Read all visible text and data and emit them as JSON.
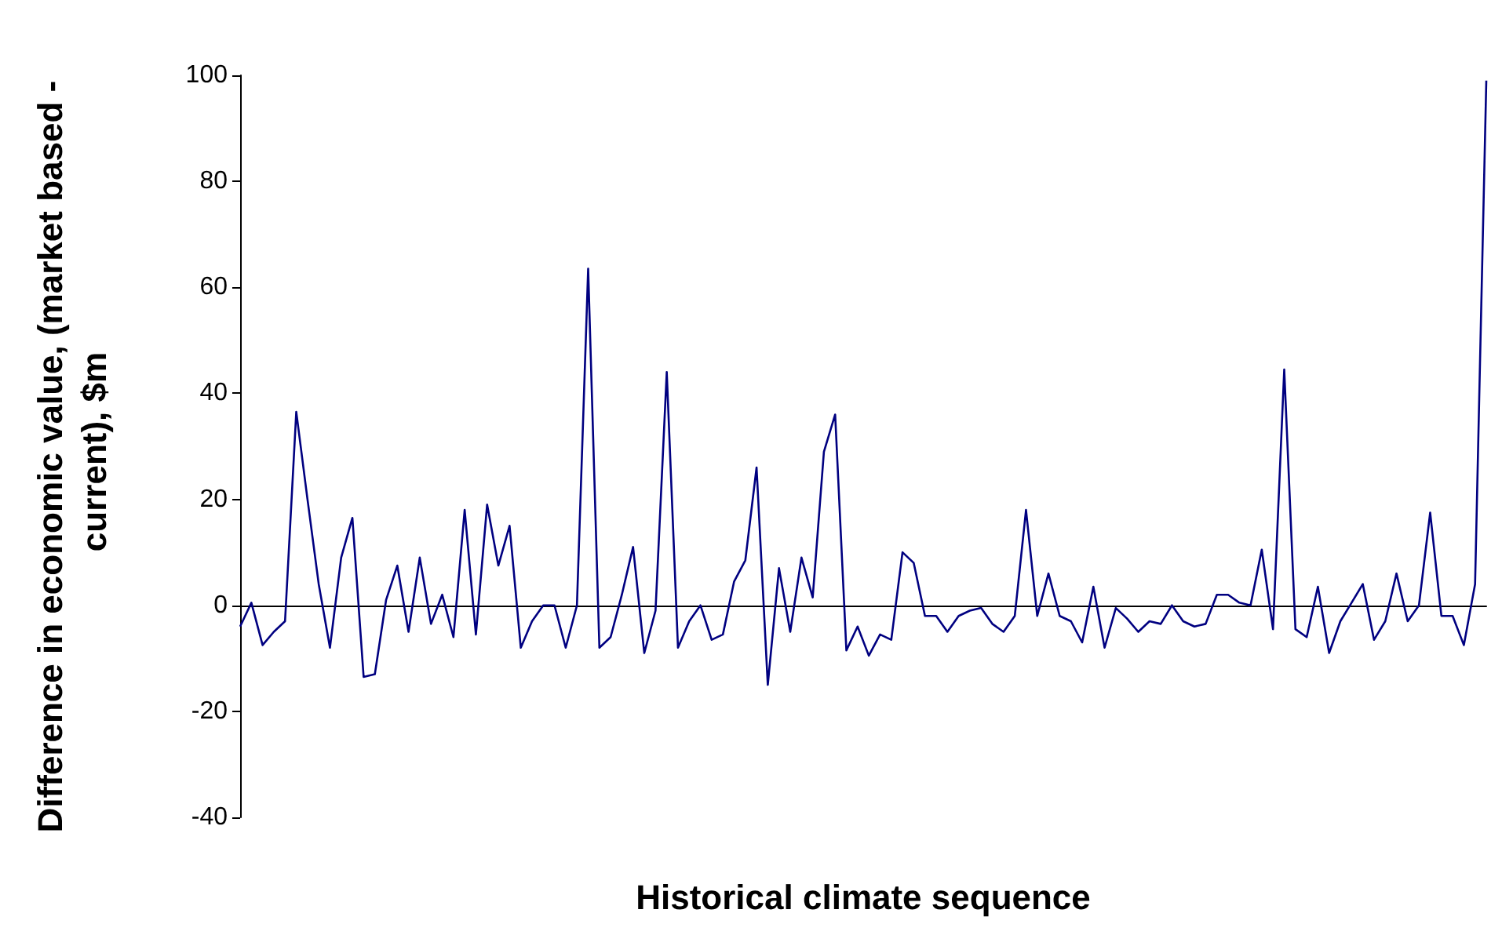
{
  "chart_data": {
    "type": "line",
    "xlabel": "Historical climate sequence",
    "ylabel": "Difference in economic value, (market based - current), $m",
    "categories": [
      null,
      null,
      null,
      null,
      null,
      null,
      null,
      null,
      null,
      null,
      null,
      null,
      null,
      null,
      null,
      null,
      null,
      null,
      null,
      null,
      null,
      null,
      null,
      null,
      null,
      null,
      null,
      null,
      null,
      null,
      null,
      null,
      null,
      null,
      null,
      null,
      null,
      null,
      null,
      null,
      null,
      null,
      null,
      null,
      null,
      null,
      null,
      null,
      null,
      null,
      null,
      null,
      null,
      null,
      null,
      null,
      null,
      null,
      null,
      null,
      null,
      null,
      null,
      null,
      null,
      null,
      null,
      null,
      null,
      null,
      null,
      null,
      null,
      null,
      null,
      null,
      null,
      null,
      null,
      null,
      null,
      null,
      null,
      null,
      null,
      null,
      null,
      null,
      null,
      null,
      null,
      null,
      null,
      null,
      null,
      null,
      null,
      null,
      null,
      null,
      null,
      null,
      null,
      null,
      null,
      null,
      null,
      null,
      null,
      null,
      null,
      null
    ],
    "series": [
      {
        "color": "#000080",
        "values": [
          -4,
          0.5,
          -7.5,
          -5,
          -3,
          36.5,
          20,
          4,
          -8,
          9,
          16.5,
          -13.5,
          -13,
          1,
          7.5,
          -5,
          9,
          -3.5,
          2,
          -6,
          18,
          -5.5,
          19,
          7.5,
          15,
          -8,
          -3,
          0,
          0,
          -8,
          0,
          63.5,
          -8,
          -6,
          2,
          11,
          -9,
          -1,
          44,
          -8,
          -3,
          0,
          -6.5,
          -5.5,
          4.5,
          8.5,
          26,
          -15,
          7,
          -5,
          9,
          1.5,
          29,
          36,
          -8.5,
          -4,
          -9.5,
          -5.5,
          -6.5,
          10,
          8,
          -2,
          -2,
          -5,
          -2,
          -1,
          -0.5,
          -3.5,
          -5,
          -2,
          18,
          -2,
          6,
          -2,
          -3,
          -7,
          3.5,
          -8,
          -0.5,
          -2.5,
          -5,
          -3,
          -3.5,
          0,
          -3,
          -4,
          -3.5,
          2,
          2,
          0.5,
          0,
          10.5,
          -4.5,
          44.5,
          -4.5,
          -6,
          3.5,
          -9,
          -3,
          0.5,
          4,
          -6.5,
          -3,
          6,
          -3,
          0,
          17.5,
          -2,
          -2,
          -7.5,
          4,
          99
        ]
      }
    ],
    "ylim": [
      -40,
      100
    ],
    "yticks": [
      -40,
      -20,
      0,
      20,
      40,
      60,
      80,
      100
    ],
    "line_style": "solid",
    "tick_labels": "y"
  }
}
